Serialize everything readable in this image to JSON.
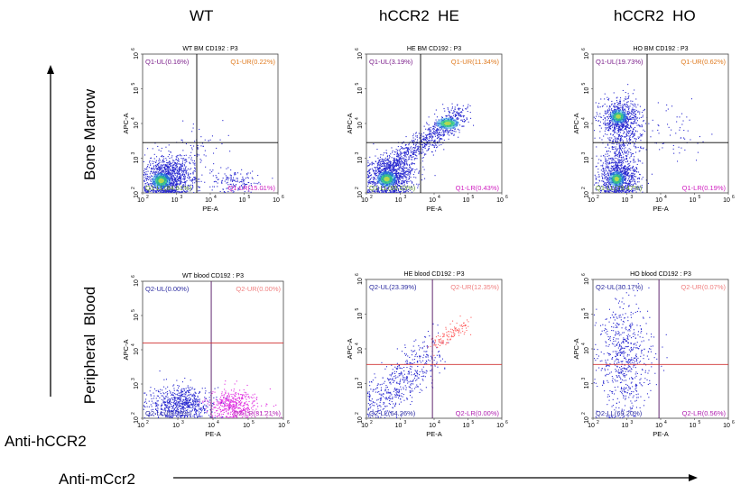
{
  "columns": [
    "WT",
    "hCCR2  HE",
    "hCCR2  HO"
  ],
  "rows": [
    "Bone Marrow",
    "Peripheral  Blood"
  ],
  "y_axis_title": "Anti-hCCR2",
  "x_axis_title": "Anti-mCcr2",
  "colors": {
    "q1_ul": "#7a1d8a",
    "q1_ur": "#e07b20",
    "q1_ll": "#5a8a2a",
    "q1_lr": "#d020c0",
    "q2_ul": "#2a2aa0",
    "q2_ur": "#f08080",
    "q2_ll": "#2a2aa0",
    "q2_lr": "#b020b0",
    "dots": "#2a2ad0",
    "dots_lr": "#e030e0",
    "dots_ur": "#ff6060"
  },
  "chart_data": [
    {
      "type": "scatter",
      "title": "WT BM CD192 : P3",
      "xlabel": "PE-A",
      "ylabel": "APC-A",
      "xlim": [
        2,
        6
      ],
      "ylim": [
        2,
        6
      ],
      "x_ticks": [
        "2",
        "3",
        "4",
        "5",
        "6"
      ],
      "y_ticks": [
        "2",
        "3",
        "4",
        "5",
        "6"
      ],
      "gate_x": 3.6,
      "gate_y": 3.45,
      "gate_color": "#000000",
      "density": true,
      "quadrants": {
        "ul": "Q1-UL(0.16%)",
        "ur": "Q1-UR(0.22%)",
        "ll": "Q1-LL(84.61%)",
        "lr": "Q1-LR(15.01%)"
      },
      "quadrant_colors": {
        "ul": "q1_ul",
        "ur": "q1_ur",
        "ll": "q1_ll",
        "lr": "q1_lr"
      },
      "populations": [
        {
          "cx": 2.7,
          "cy": 2.4,
          "sx": 0.35,
          "sy": 0.3,
          "n": 900,
          "color": "dots"
        },
        {
          "cx": 3.0,
          "cy": 2.6,
          "sx": 0.4,
          "sy": 0.3,
          "n": 250,
          "color": "dots"
        },
        {
          "cx": 4.7,
          "cy": 2.35,
          "sx": 0.35,
          "sy": 0.2,
          "n": 150,
          "color": "dots"
        },
        {
          "cx": 3.6,
          "cy": 3.3,
          "sx": 0.4,
          "sy": 0.35,
          "n": 60,
          "color": "dots"
        }
      ],
      "hot_spots": [
        {
          "cx": 2.55,
          "cy": 2.35,
          "rx": 0.25,
          "ry": 0.2
        }
      ]
    },
    {
      "type": "scatter",
      "title": "HE BM CD192 : P3",
      "xlabel": "PE-A",
      "ylabel": "APC-A",
      "xlim": [
        2,
        6
      ],
      "ylim": [
        2,
        6
      ],
      "x_ticks": [
        "2",
        "3",
        "4",
        "5",
        "6"
      ],
      "y_ticks": [
        "2",
        "3",
        "4",
        "5",
        "6"
      ],
      "gate_x": 3.6,
      "gate_y": 3.45,
      "gate_color": "#000000",
      "density": true,
      "quadrants": {
        "ul": "Q1-UL(3.19%)",
        "ur": "Q1-UR(11.34%)",
        "ll": "Q1-LL(85.03%)",
        "lr": "Q1-LR(0.43%)"
      },
      "quadrant_colors": {
        "ul": "q1_ul",
        "ur": "q1_ur",
        "ll": "q1_ll",
        "lr": "q1_lr"
      },
      "populations": [
        {
          "cx": 2.7,
          "cy": 2.45,
          "sx": 0.35,
          "sy": 0.3,
          "n": 900,
          "color": "dots"
        },
        {
          "diag": true,
          "x0": 2.5,
          "y0": 2.6,
          "x1": 4.8,
          "y1": 4.3,
          "spread": 0.18,
          "n": 900,
          "color": "dots"
        }
      ],
      "hot_spots": [
        {
          "cx": 2.6,
          "cy": 2.4,
          "rx": 0.25,
          "ry": 0.2
        },
        {
          "cx": 4.4,
          "cy": 4.0,
          "rx": 0.3,
          "ry": 0.15
        }
      ]
    },
    {
      "type": "scatter",
      "title": "HO BM CD192 : P3",
      "xlabel": "PE-A",
      "ylabel": "APC-A",
      "xlim": [
        2,
        6
      ],
      "ylim": [
        2,
        6
      ],
      "x_ticks": [
        "2",
        "3",
        "4",
        "5",
        "6"
      ],
      "y_ticks": [
        "2",
        "3",
        "4",
        "5",
        "6"
      ],
      "gate_x": 3.6,
      "gate_y": 3.45,
      "gate_color": "#000000",
      "density": true,
      "quadrants": {
        "ul": "Q1-UL(19.73%)",
        "ur": "Q1-UR(0.62%)",
        "ll": "Q1-LL(79.47%)",
        "lr": "Q1-LR(0.19%)"
      },
      "quadrant_colors": {
        "ul": "q1_ul",
        "ur": "q1_ur",
        "ll": "q1_ll",
        "lr": "q1_lr"
      },
      "populations": [
        {
          "cx": 2.75,
          "cy": 2.45,
          "sx": 0.3,
          "sy": 0.3,
          "n": 800,
          "color": "dots"
        },
        {
          "cx": 2.8,
          "cy": 4.15,
          "sx": 0.3,
          "sy": 0.3,
          "n": 700,
          "color": "dots"
        },
        {
          "cx": 2.8,
          "cy": 3.3,
          "sx": 0.3,
          "sy": 0.45,
          "n": 300,
          "color": "dots"
        },
        {
          "cx": 4.3,
          "cy": 3.8,
          "sx": 0.5,
          "sy": 0.4,
          "n": 60,
          "color": "dots"
        }
      ],
      "hot_spots": [
        {
          "cx": 2.7,
          "cy": 2.4,
          "rx": 0.2,
          "ry": 0.2
        },
        {
          "cx": 2.75,
          "cy": 4.2,
          "rx": 0.22,
          "ry": 0.18
        }
      ]
    },
    {
      "type": "scatter",
      "title": "WT blood CD192 : P3",
      "xlabel": "PE-A",
      "ylabel": "APC-A",
      "xlim": [
        2,
        6
      ],
      "ylim": [
        2,
        6
      ],
      "x_ticks": [
        "2",
        "3",
        "4",
        "5",
        "6"
      ],
      "y_ticks": [
        "2",
        "3",
        "4",
        "5",
        "6"
      ],
      "gate_x": 3.95,
      "gate_y": 4.2,
      "gate_color": "#d03030",
      "gate_x_color": "#501060",
      "density": false,
      "quadrants": {
        "ul": "Q2-UL(0.00%)",
        "ur": "Q2-UR(0.00%)",
        "ll": "Q2-LL(68.79%)",
        "lr": "Q2-LR(31.21%)"
      },
      "quadrant_colors": {
        "ul": "q2_ul",
        "ur": "q2_ur",
        "ll": "q2_ll",
        "lr": "q2_lr"
      },
      "populations": [
        {
          "cx": 3.1,
          "cy": 2.45,
          "sx": 0.45,
          "sy": 0.25,
          "n": 700,
          "color": "dots"
        },
        {
          "cx": 4.6,
          "cy": 2.4,
          "sx": 0.35,
          "sy": 0.22,
          "n": 450,
          "color": "dots_lr"
        }
      ],
      "hot_spots": []
    },
    {
      "type": "scatter",
      "title": "HE blood CD192 : P3",
      "xlabel": "PE-A",
      "ylabel": "APC-A",
      "xlim": [
        2,
        6
      ],
      "ylim": [
        2,
        6
      ],
      "x_ticks": [
        "2",
        "3",
        "4",
        "5",
        "6"
      ],
      "y_ticks": [
        "2",
        "3",
        "4",
        "5",
        "6"
      ],
      "gate_x": 3.95,
      "gate_y": 3.55,
      "gate_color": "#d03030",
      "gate_x_color": "#501060",
      "density": false,
      "quadrants": {
        "ul": "Q2-UL(23.39%)",
        "ur": "Q2-UR(12.35%)",
        "ll": "Q2-LL(64.26%)",
        "lr": "Q2-LR(0.00%)"
      },
      "quadrant_colors": {
        "ul": "q2_ul",
        "ur": "q2_ur",
        "ll": "q2_ll",
        "lr": "q2_lr"
      },
      "populations": [
        {
          "diag": true,
          "x0": 2.2,
          "y0": 2.3,
          "x1": 3.9,
          "y1": 4.0,
          "spread": 0.3,
          "n": 500,
          "color": "dots"
        },
        {
          "diag": true,
          "x0": 4.0,
          "y0": 4.1,
          "x1": 4.9,
          "y1": 4.75,
          "spread": 0.1,
          "n": 120,
          "color": "dots_ur"
        }
      ],
      "hot_spots": []
    },
    {
      "type": "scatter",
      "title": "HO blood CD192 : P3",
      "xlabel": "PE-A",
      "ylabel": "APC-A",
      "xlim": [
        2,
        6
      ],
      "ylim": [
        2,
        6
      ],
      "x_ticks": [
        "2",
        "3",
        "4",
        "5",
        "6"
      ],
      "y_ticks": [
        "2",
        "3",
        "4",
        "5",
        "6"
      ],
      "gate_x": 3.95,
      "gate_y": 3.55,
      "gate_color": "#d03030",
      "gate_x_color": "#501060",
      "density": false,
      "quadrants": {
        "ul": "Q2-UL(30.17%)",
        "ur": "Q2-UR(0.07%)",
        "ll": "Q2-LL(69.20%)",
        "lr": "Q2-LR(0.56%)"
      },
      "quadrant_colors": {
        "ul": "q2_ul",
        "ur": "q2_ur",
        "ll": "q2_ll",
        "lr": "q2_lr"
      },
      "populations": [
        {
          "cx": 2.95,
          "cy": 3.7,
          "sx": 0.4,
          "sy": 0.85,
          "n": 650,
          "color": "dots"
        }
      ],
      "hot_spots": []
    }
  ]
}
